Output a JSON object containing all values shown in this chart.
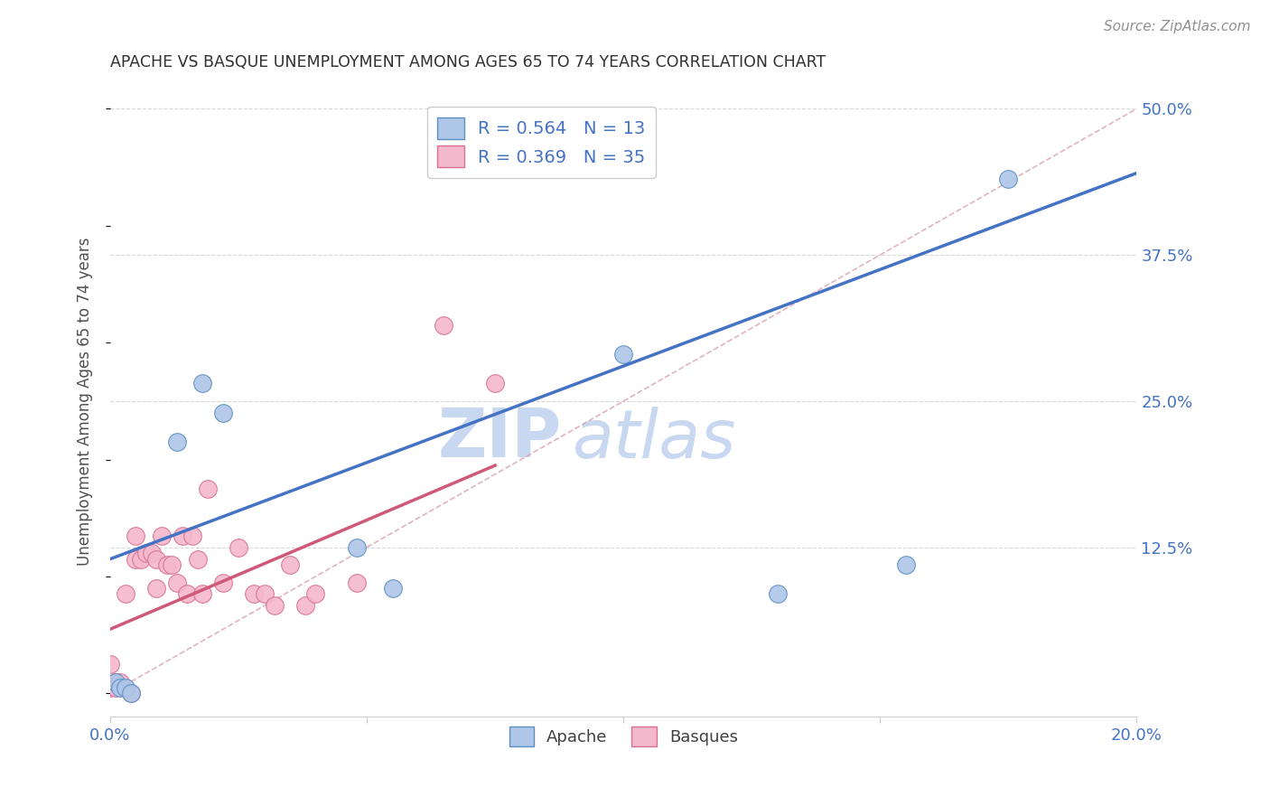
{
  "title": "APACHE VS BASQUE UNEMPLOYMENT AMONG AGES 65 TO 74 YEARS CORRELATION CHART",
  "source": "Source: ZipAtlas.com",
  "ylabel": "Unemployment Among Ages 65 to 74 years",
  "xlim": [
    0.0,
    0.2
  ],
  "ylim": [
    -0.02,
    0.52
  ],
  "plot_ylim": [
    0.0,
    0.5
  ],
  "xticks": [
    0.0,
    0.05,
    0.1,
    0.15,
    0.2
  ],
  "xtick_labels": [
    "0.0%",
    "",
    "",
    "",
    "20.0%"
  ],
  "ytick_right": [
    0.125,
    0.25,
    0.375,
    0.5
  ],
  "ytick_right_labels": [
    "12.5%",
    "25.0%",
    "37.5%",
    "50.0%"
  ],
  "apache_color": "#aec6e8",
  "apache_edge": "#5a8fc0",
  "basque_color": "#f4b8cc",
  "basque_edge": "#d87090",
  "apache_R": 0.564,
  "apache_N": 13,
  "basque_R": 0.369,
  "basque_N": 35,
  "apache_line_color": "#4472c4",
  "basque_line_color": "#d05878",
  "ref_line_color": "#d8a0b0",
  "grid_color": "#d8d8d8",
  "title_color": "#303030",
  "axis_label_color": "#505050",
  "legend_R_color": "#4472c4",
  "watermark_color": "#c8d8f0",
  "apache_x": [
    0.001,
    0.002,
    0.003,
    0.004,
    0.013,
    0.018,
    0.022,
    0.048,
    0.055,
    0.1,
    0.13,
    0.155,
    0.175
  ],
  "apache_y": [
    0.01,
    0.005,
    0.005,
    0.0,
    0.215,
    0.265,
    0.24,
    0.125,
    0.09,
    0.29,
    0.085,
    0.11,
    0.44
  ],
  "basque_x": [
    0.0,
    0.0,
    0.001,
    0.001,
    0.002,
    0.003,
    0.004,
    0.005,
    0.005,
    0.006,
    0.007,
    0.008,
    0.009,
    0.009,
    0.01,
    0.011,
    0.012,
    0.013,
    0.014,
    0.015,
    0.016,
    0.017,
    0.018,
    0.019,
    0.022,
    0.025,
    0.028,
    0.03,
    0.032,
    0.035,
    0.038,
    0.04,
    0.048,
    0.065,
    0.075
  ],
  "basque_y": [
    0.005,
    0.025,
    0.01,
    0.005,
    0.01,
    0.085,
    0.0,
    0.135,
    0.115,
    0.115,
    0.12,
    0.12,
    0.115,
    0.09,
    0.135,
    0.11,
    0.11,
    0.095,
    0.135,
    0.085,
    0.135,
    0.115,
    0.085,
    0.175,
    0.095,
    0.125,
    0.085,
    0.085,
    0.075,
    0.11,
    0.075,
    0.085,
    0.095,
    0.315,
    0.265
  ],
  "apache_line_x0": 0.0,
  "apache_line_y0": 0.115,
  "apache_line_x1": 0.2,
  "apache_line_y1": 0.445,
  "basque_line_x0": 0.0,
  "basque_line_y0": 0.055,
  "basque_line_x1": 0.075,
  "basque_line_y1": 0.195,
  "ref_line_x0": 0.0,
  "ref_line_y0": 0.0,
  "ref_line_x1": 0.2,
  "ref_line_y1": 0.5
}
